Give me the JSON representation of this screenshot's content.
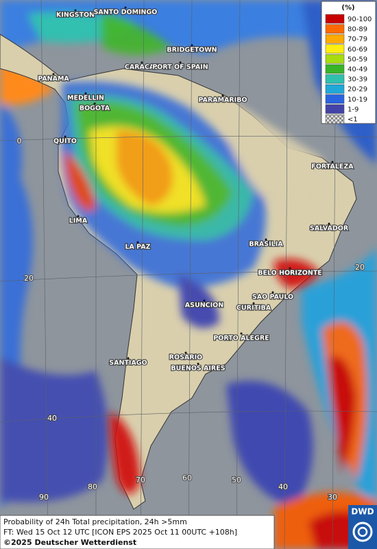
{
  "legend": {
    "title": "(%)",
    "items": [
      {
        "label": "90-100",
        "color": "#c80000"
      },
      {
        "label": "80-89",
        "color": "#ff6a00"
      },
      {
        "label": "70-79",
        "color": "#ffaa00"
      },
      {
        "label": "60-69",
        "color": "#ffee10"
      },
      {
        "label": "50-59",
        "color": "#a8dc10"
      },
      {
        "label": "40-49",
        "color": "#38b428"
      },
      {
        "label": "30-39",
        "color": "#30c0b0"
      },
      {
        "label": "20-29",
        "color": "#20a8d8"
      },
      {
        "label": "10-19",
        "color": "#2a64e0"
      },
      {
        "label": "1-9",
        "color": "#4444a8"
      },
      {
        "label": "<1",
        "color": "checker"
      }
    ]
  },
  "cities": [
    "KINGSTON",
    "SANTO DOMINGO",
    "BRIDGETOWN",
    "CARACAS",
    "PORT OF SPAIN",
    "PANAMA",
    "PARAMARIBO",
    "MEDELLIN",
    "BOGOTA",
    "QUITO",
    "FORTALEZA",
    "LIMA",
    "SALVADOR",
    "BRASILIA",
    "LA PAZ",
    "BELO HORIZONTE",
    "SAO PAULO",
    "ASUNCION",
    "CURITIBA",
    "PORTO ALEGRE",
    "SANTIAGO",
    "ROSARIO",
    "BUENOS AIRES"
  ],
  "grid_labels": [
    "0",
    "20",
    "40",
    "20",
    "90",
    "80",
    "70",
    "60",
    "50",
    "40",
    "30"
  ],
  "footer": {
    "line1": "Probability of 24h Total precipitation, 24h >5mm",
    "line2": "FT: Wed 15 Oct 12 UTC [ICON EPS 2025 Oct 11 00UTC +108h]",
    "copyright": "©2025 Deutscher Wetterdienst"
  },
  "logo": "DWD"
}
